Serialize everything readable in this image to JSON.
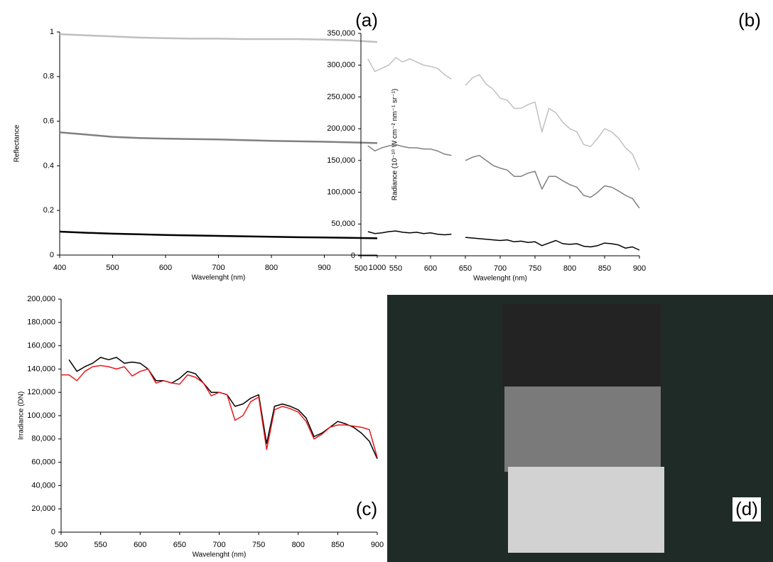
{
  "chart_data": [
    {
      "type": "line",
      "panel_label": "(a)",
      "x_label": "Wavelenght (nm)",
      "y_label": "Reflectance",
      "x": [
        400,
        450,
        500,
        550,
        600,
        650,
        700,
        750,
        800,
        850,
        900,
        950,
        1000
      ],
      "series": [
        {
          "color": "#bfbfbf",
          "values": [
            0.99,
            0.985,
            0.98,
            0.975,
            0.972,
            0.97,
            0.97,
            0.968,
            0.968,
            0.968,
            0.966,
            0.962,
            0.955
          ]
        },
        {
          "color": "#808080",
          "values": [
            0.55,
            0.54,
            0.53,
            0.525,
            0.522,
            0.52,
            0.518,
            0.515,
            0.512,
            0.51,
            0.508,
            0.505,
            0.502
          ]
        },
        {
          "color": "#000000",
          "values": [
            0.105,
            0.1,
            0.096,
            0.093,
            0.09,
            0.088,
            0.086,
            0.084,
            0.082,
            0.08,
            0.079,
            0.077,
            0.075
          ]
        }
      ],
      "xlim": [
        400,
        1000
      ],
      "xticks": [
        400,
        500,
        600,
        700,
        800,
        900,
        1000
      ],
      "ylim": [
        0,
        1
      ],
      "yticks": [
        0,
        0.2,
        0.4,
        0.6,
        0.8,
        1
      ]
    },
    {
      "type": "line",
      "panel_label": "(b)",
      "x_label": "Wavelenght (nm)",
      "y_label": "Radiance (10⁻¹⁰ W cm⁻² nm⁻¹ sr⁻¹)",
      "x": [
        510,
        520,
        530,
        540,
        550,
        560,
        570,
        580,
        590,
        600,
        610,
        620,
        630,
        640,
        650,
        660,
        670,
        680,
        690,
        700,
        710,
        720,
        730,
        740,
        750,
        760,
        770,
        780,
        790,
        800,
        810,
        820,
        830,
        840,
        850,
        860,
        870,
        880,
        890,
        900
      ],
      "series": [
        {
          "color": "#c0c0c0",
          "values": [
            310000,
            290000,
            295000,
            300000,
            312000,
            305000,
            310000,
            305000,
            300000,
            298000,
            295000,
            285000,
            278000,
            null,
            268000,
            280000,
            285000,
            270000,
            262000,
            248000,
            245000,
            232000,
            232000,
            238000,
            242000,
            195000,
            232000,
            225000,
            210000,
            200000,
            195000,
            175000,
            172000,
            185000,
            200000,
            195000,
            185000,
            170000,
            160000,
            135000
          ]
        },
        {
          "color": "#808080",
          "values": [
            173000,
            165000,
            170000,
            173000,
            175000,
            172000,
            170000,
            170000,
            168000,
            168000,
            165000,
            160000,
            158000,
            null,
            150000,
            155000,
            158000,
            150000,
            142000,
            138000,
            135000,
            125000,
            125000,
            130000,
            133000,
            105000,
            125000,
            125000,
            118000,
            112000,
            108000,
            95000,
            92000,
            100000,
            110000,
            108000,
            102000,
            95000,
            90000,
            75000
          ]
        },
        {
          "color": "#000000",
          "values": [
            38000,
            35000,
            36000,
            38000,
            39000,
            37000,
            36000,
            37000,
            35000,
            36000,
            34000,
            33000,
            34000,
            null,
            29000,
            28000,
            27000,
            26000,
            25000,
            24000,
            25000,
            22000,
            23000,
            21000,
            22000,
            16000,
            20000,
            24000,
            19000,
            18000,
            19000,
            15000,
            14000,
            16000,
            20000,
            19000,
            17000,
            12000,
            14000,
            9000
          ]
        }
      ],
      "xlim": [
        500,
        900
      ],
      "xticks": [
        500,
        550,
        600,
        650,
        700,
        750,
        800,
        850,
        900
      ],
      "ylim": [
        0,
        350000
      ],
      "yticks": [
        0,
        {
          "value": 50000,
          "label": "50,000"
        },
        {
          "value": 100000,
          "label": "100,000"
        },
        {
          "value": 150000,
          "label": "150,000"
        },
        {
          "value": 200000,
          "label": "200,000"
        },
        {
          "value": 250000,
          "label": "250,000"
        },
        {
          "value": 300000,
          "label": "300,000"
        },
        {
          "value": 350000,
          "label": "350,000"
        }
      ]
    },
    {
      "type": "line",
      "panel_label": "(c)",
      "x_label": "Wavelenght (nm)",
      "y_label": "Irradiance (DN)",
      "x": [
        500,
        510,
        520,
        530,
        540,
        550,
        560,
        570,
        580,
        590,
        600,
        610,
        620,
        630,
        640,
        650,
        660,
        670,
        680,
        690,
        700,
        710,
        720,
        730,
        740,
        750,
        760,
        770,
        780,
        790,
        800,
        810,
        820,
        830,
        840,
        850,
        860,
        870,
        880,
        890,
        900
      ],
      "series": [
        {
          "color": "#000000",
          "values": [
            null,
            148000,
            138000,
            142000,
            145000,
            150000,
            148000,
            150000,
            145000,
            146000,
            145000,
            140000,
            130000,
            130000,
            128000,
            132000,
            138000,
            136000,
            128000,
            120000,
            120000,
            118000,
            108000,
            110000,
            115000,
            118000,
            76000,
            108000,
            110000,
            108000,
            105000,
            98000,
            82000,
            85000,
            90000,
            95000,
            93000,
            90000,
            85000,
            78000,
            63000
          ]
        },
        {
          "color": "#e31a1c",
          "values": [
            135000,
            135000,
            130000,
            138000,
            142000,
            143000,
            142000,
            140000,
            142000,
            134000,
            138000,
            140000,
            128000,
            130000,
            128000,
            127000,
            135000,
            133000,
            128000,
            117000,
            120000,
            118000,
            96000,
            100000,
            112000,
            116000,
            71000,
            105000,
            108000,
            106000,
            103000,
            95000,
            80000,
            84000,
            90000,
            92000,
            92000,
            91000,
            90000,
            88000,
            64000
          ]
        }
      ],
      "xlim": [
        500,
        900
      ],
      "xticks": [
        500,
        550,
        600,
        650,
        700,
        750,
        800,
        850,
        900
      ],
      "ylim": [
        0,
        200000
      ],
      "yticks": [
        0,
        {
          "value": 20000,
          "label": "20,000"
        },
        {
          "value": 40000,
          "label": "40,000"
        },
        {
          "value": 60000,
          "label": "60,000"
        },
        {
          "value": 80000,
          "label": "80,000"
        },
        {
          "value": 100000,
          "label": "100,000"
        },
        {
          "value": 120000,
          "label": "120,000"
        },
        {
          "value": 140000,
          "label": "140,000"
        },
        {
          "value": 160000,
          "label": "160,000"
        },
        {
          "value": 180000,
          "label": "180,000"
        },
        {
          "value": 200000,
          "label": "200,000"
        }
      ]
    }
  ],
  "image": {
    "panel_label": "(d)"
  }
}
